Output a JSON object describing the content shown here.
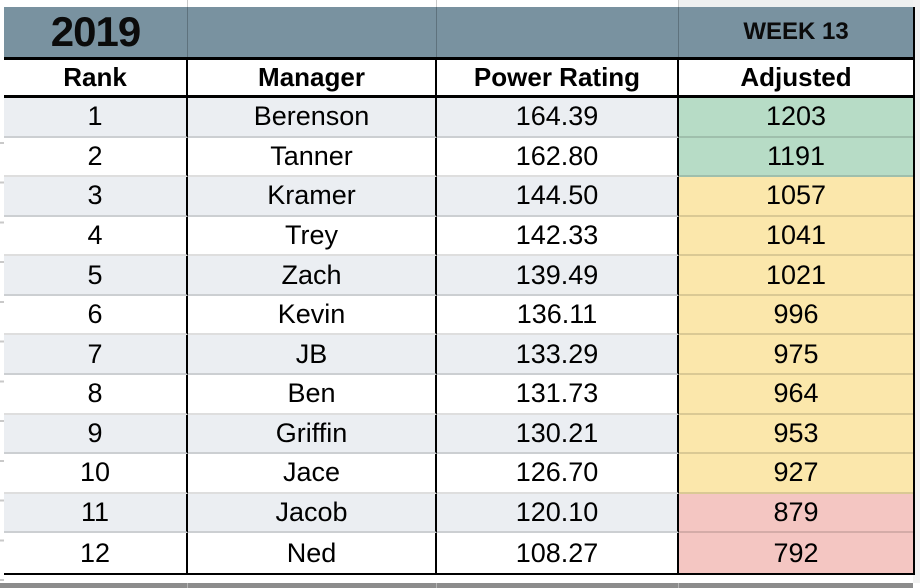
{
  "title_band": {
    "year": "2019",
    "week_label": "WEEK 13"
  },
  "columns": {
    "rank": "Rank",
    "manager": "Manager",
    "power_rating": "Power Rating",
    "adjusted": "Adjusted"
  },
  "rows": [
    {
      "rank": "1",
      "manager": "Berenson",
      "power_rating": "164.39",
      "adjusted": "1203",
      "tier": "green"
    },
    {
      "rank": "2",
      "manager": "Tanner",
      "power_rating": "162.80",
      "adjusted": "1191",
      "tier": "green"
    },
    {
      "rank": "3",
      "manager": "Kramer",
      "power_rating": "144.50",
      "adjusted": "1057",
      "tier": "yellow"
    },
    {
      "rank": "4",
      "manager": "Trey",
      "power_rating": "142.33",
      "adjusted": "1041",
      "tier": "yellow"
    },
    {
      "rank": "5",
      "manager": "Zach",
      "power_rating": "139.49",
      "adjusted": "1021",
      "tier": "yellow"
    },
    {
      "rank": "6",
      "manager": "Kevin",
      "power_rating": "136.11",
      "adjusted": "996",
      "tier": "yellow"
    },
    {
      "rank": "7",
      "manager": "JB",
      "power_rating": "133.29",
      "adjusted": "975",
      "tier": "yellow"
    },
    {
      "rank": "8",
      "manager": "Ben",
      "power_rating": "131.73",
      "adjusted": "964",
      "tier": "yellow"
    },
    {
      "rank": "9",
      "manager": "Griffin",
      "power_rating": "130.21",
      "adjusted": "953",
      "tier": "yellow"
    },
    {
      "rank": "10",
      "manager": "Jace",
      "power_rating": "126.70",
      "adjusted": "927",
      "tier": "yellow"
    },
    {
      "rank": "11",
      "manager": "Jacob",
      "power_rating": "120.10",
      "adjusted": "879",
      "tier": "red"
    },
    {
      "rank": "12",
      "manager": "Ned",
      "power_rating": "108.27",
      "adjusted": "792",
      "tier": "red"
    }
  ],
  "colors": {
    "band_background": "#7992a0",
    "row_shade": "#ebeef2",
    "row_white": "#ffffff",
    "tiers": {
      "green": "#b7dcc6",
      "yellow": "#fbe7ab",
      "red": "#f4c6c2"
    }
  }
}
